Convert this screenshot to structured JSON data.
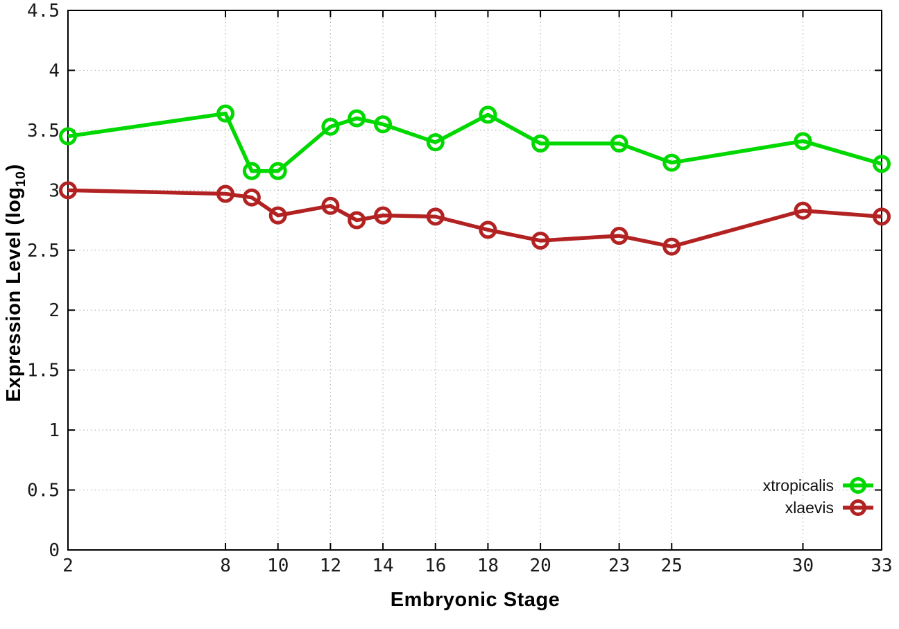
{
  "chart_data": {
    "type": "line",
    "title": "",
    "xlabel": "Embryonic Stage",
    "ylabel": "Expression Level (log10)",
    "ylabel_rich": {
      "prefix": "Expression Level (log",
      "subscript": "10",
      "suffix": ")"
    },
    "x": [
      2,
      8,
      9,
      10,
      12,
      13,
      14,
      16,
      18,
      20,
      23,
      25,
      30,
      33
    ],
    "series": [
      {
        "name": "xtropicalis",
        "color": "#00d800",
        "values": [
          3.45,
          3.64,
          3.16,
          3.16,
          3.53,
          3.6,
          3.55,
          3.4,
          3.63,
          3.39,
          3.39,
          3.23,
          3.41,
          3.22
        ]
      },
      {
        "name": "xlaevis",
        "color": "#b22222",
        "values": [
          3.0,
          2.97,
          2.94,
          2.79,
          2.87,
          2.75,
          2.79,
          2.78,
          2.67,
          2.58,
          2.62,
          2.53,
          2.83,
          2.78
        ]
      }
    ],
    "xticks": [
      2,
      8,
      10,
      12,
      14,
      16,
      18,
      20,
      23,
      25,
      30,
      33
    ],
    "yticks": [
      0,
      0.5,
      1,
      1.5,
      2,
      2.5,
      3,
      3.5,
      4,
      4.5
    ],
    "xlim": [
      2,
      33
    ],
    "ylim": [
      0,
      4.5
    ],
    "grid": true,
    "legend_position": "inside-bottom-right",
    "marker": "open-circle",
    "colors": {
      "background": "#ffffff",
      "axis": "#000000",
      "grid": "#b5b5b5",
      "tick_text": "#1a1a1a"
    }
  }
}
